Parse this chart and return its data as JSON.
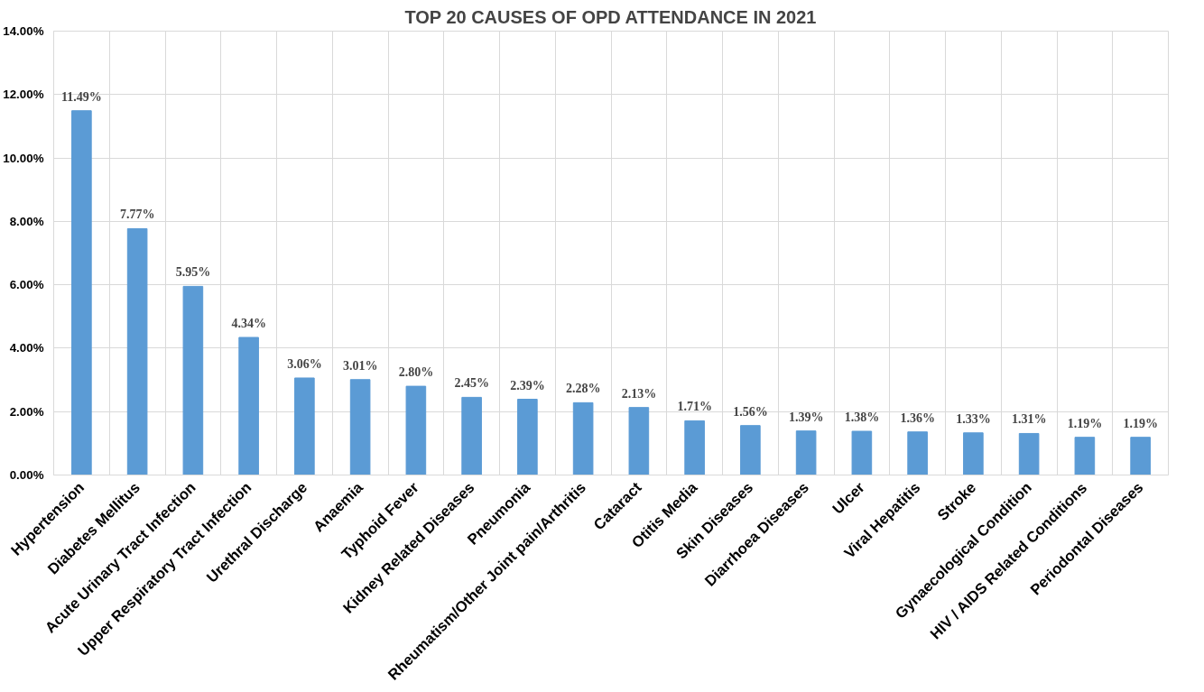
{
  "chart_data": {
    "type": "bar",
    "title": "TOP 20 CAUSES OF OPD ATTENDANCE IN 2021",
    "categories": [
      "Hypertension",
      "Diabetes Mellitus",
      "Acute Urinary Tract Infection",
      "Upper Respiratory Tract Infection",
      "Urethral Discharge",
      "Anaemia",
      "Typhoid Fever",
      "Kidney Related Diseases",
      "Pneumonia",
      "Rheumatism/Other Joint pain/Arthritis",
      "Cataract",
      "Otitis Media",
      "Skin Diseases",
      "Diarrhoea Diseases",
      "Ulcer",
      "Viral Hepatitis",
      "Stroke",
      "Gynaecological Condition",
      "HIV / AIDS Related Conditions",
      "Periodontal Diseases"
    ],
    "values": [
      11.49,
      7.77,
      5.95,
      4.34,
      3.06,
      3.01,
      2.8,
      2.45,
      2.39,
      2.28,
      2.13,
      1.71,
      1.56,
      1.39,
      1.38,
      1.36,
      1.33,
      1.31,
      1.19,
      1.19
    ],
    "value_labels": [
      "11.49%",
      "7.77%",
      "5.95%",
      "4.34%",
      "3.06%",
      "3.01%",
      "2.80%",
      "2.45%",
      "2.39%",
      "2.28%",
      "2.13%",
      "1.71%",
      "1.56%",
      "1.39%",
      "1.38%",
      "1.36%",
      "1.33%",
      "1.31%",
      "1.19%",
      "1.19%"
    ],
    "color": "#5b9bd5",
    "ylim": [
      0,
      14
    ],
    "yticks": [
      {
        "value": 0,
        "label": "0.00%"
      },
      {
        "value": 2,
        "label": "2.00%"
      },
      {
        "value": 4,
        "label": "4.00%"
      },
      {
        "value": 6,
        "label": "6.00%"
      },
      {
        "value": 8,
        "label": "8.00%"
      },
      {
        "value": 10,
        "label": "10.00%"
      },
      {
        "value": 12,
        "label": "12.00%"
      },
      {
        "value": 14,
        "label": "14.00%"
      }
    ],
    "grid": true
  }
}
